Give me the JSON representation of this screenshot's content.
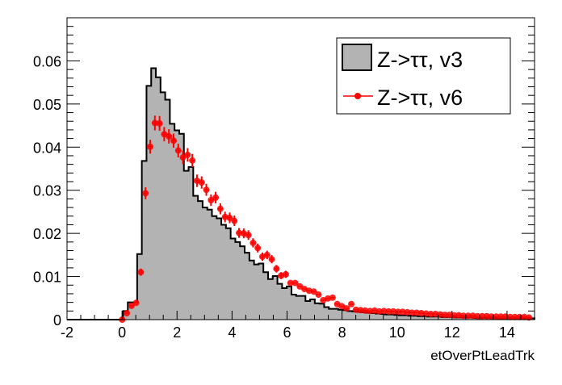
{
  "chart_data": {
    "type": "bar",
    "title": "",
    "xlabel": "etOverPtLeadTrk",
    "ylabel": "",
    "xlim": [
      -2,
      15
    ],
    "ylim": [
      0,
      0.07
    ],
    "grid": false,
    "legend_placement": "top-right",
    "x_ticks": [
      "-2",
      "0",
      "2",
      "4",
      "6",
      "8",
      "10",
      "12",
      "14"
    ],
    "x_tick_values": [
      -2,
      0,
      2,
      4,
      6,
      8,
      10,
      12,
      14
    ],
    "y_ticks": [
      "0",
      "0.01",
      "0.02",
      "0.03",
      "0.04",
      "0.05",
      "0.06"
    ],
    "y_tick_values": [
      0,
      0.01,
      0.02,
      0.03,
      0.04,
      0.05,
      0.06
    ],
    "bin_start": 0.04,
    "bin_width": 0.17,
    "series": [
      {
        "name": "Z->ττ, v3",
        "style": "filled-histogram",
        "fill": "#b3b3b3",
        "line": "#000000",
        "values": [
          0.002,
          0.004,
          0.004,
          0.0152,
          0.0368,
          0.0542,
          0.0583,
          0.0562,
          0.0527,
          0.051,
          0.0454,
          0.0439,
          0.0431,
          0.0345,
          0.0354,
          0.0287,
          0.0275,
          0.026,
          0.0255,
          0.024,
          0.0235,
          0.022,
          0.0212,
          0.0188,
          0.018,
          0.017,
          0.0155,
          0.0137,
          0.0128,
          0.013,
          0.011,
          0.0094,
          0.0101,
          0.0083,
          0.0073,
          0.0077,
          0.0058,
          0.0055,
          0.0055,
          0.0043,
          0.0047,
          0.0038,
          0.0037,
          0.0029,
          0.0025,
          0.0025,
          0.0023,
          0.0022,
          0.002,
          0.0019,
          0.0018,
          0.0017,
          0.0016,
          0.0015,
          0.0014,
          0.0013,
          0.0012,
          0.0012,
          0.0011,
          0.001,
          0.001,
          0.0009,
          0.0009,
          0.0008,
          0.0008,
          0.0007,
          0.0007,
          0.0007,
          0.0006,
          0.0006,
          0.0006,
          0.0005,
          0.0005,
          0.0005,
          0.0005,
          0.0004,
          0.0004,
          0.0004,
          0.0004,
          0.0004,
          0.0003,
          0.0003,
          0.0003,
          0.0003,
          0.0003,
          0.0003,
          0.0003,
          0.0003
        ]
      },
      {
        "name": "Z->ττ, v6",
        "style": "markers-with-errors",
        "color": "#ff0000",
        "values": [
          0,
          0.0015,
          0.0032,
          0.0039,
          0.011,
          0.0293,
          0.0401,
          0.0456,
          0.0455,
          0.043,
          0.0425,
          0.0415,
          0.0392,
          0.0376,
          0.0382,
          0.0369,
          0.0322,
          0.0318,
          0.0301,
          0.0277,
          0.0283,
          0.0257,
          0.0238,
          0.0236,
          0.0229,
          0.0201,
          0.02,
          0.0196,
          0.0178,
          0.0166,
          0.0146,
          0.015,
          0.014,
          0.0118,
          0.0102,
          0.0105,
          0.0085,
          0.0085,
          0.0077,
          0.0071,
          0.0067,
          0.0065,
          0.0058,
          0.0045,
          0.0049,
          0.0051,
          0.0036,
          0.0031,
          0.0026,
          0.0036,
          0.0023,
          0.0022,
          0.0021,
          0.002,
          0.0021,
          0.0019,
          0.002,
          0.0019,
          0.0019,
          0.0018,
          0.0018,
          0.0017,
          0.0016,
          0.0016,
          0.0015,
          0.0014,
          0.0013,
          0.0013,
          0.0012,
          0.0011,
          0.0011,
          0.001,
          0.001,
          0.0009,
          0.0009,
          0.0009,
          0.0008,
          0.0008,
          0.0008,
          0.0007,
          0.0007,
          0.0007,
          0.0007,
          0.0006,
          0.0006,
          0.0006,
          0.0006,
          0.0005
        ]
      }
    ]
  }
}
